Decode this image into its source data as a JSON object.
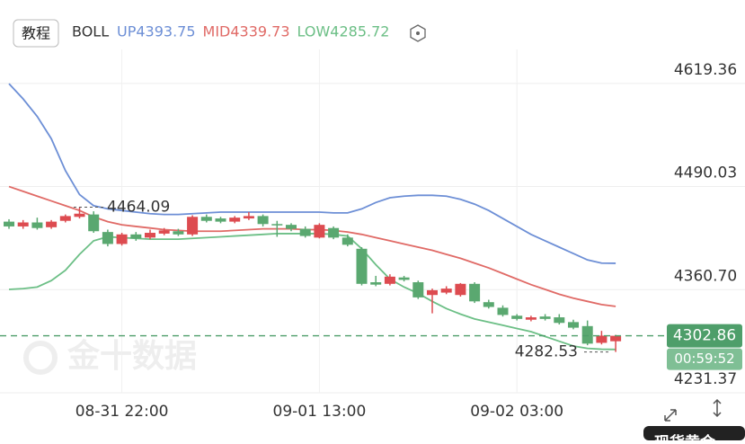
{
  "chart_data": {
    "type": "candlestick",
    "button": "教程",
    "indicator": "BOLL",
    "indicator_values": [
      {
        "text": "UP4393.75",
        "color": "#6d8fd6"
      },
      {
        "text": "MID4339.73",
        "color": "#e06a66"
      },
      {
        "text": "LOW4285.72",
        "color": "#6cbf86"
      }
    ],
    "watermark": "金十数据",
    "instrument": "现货黄金",
    "up_color": "#dd4b50",
    "down_color": "#5aa870",
    "categories": [
      null,
      null,
      null,
      null,
      null,
      null,
      null,
      null,
      "08-31 22:00",
      null,
      null,
      null,
      null,
      null,
      null,
      null,
      null,
      null,
      null,
      null,
      null,
      null,
      "09-01 13:00",
      null,
      null,
      null,
      null,
      null,
      null,
      null,
      null,
      null,
      null,
      null,
      null,
      null,
      "09-02 03:00",
      null,
      null,
      null,
      null,
      null,
      null,
      null
    ],
    "open": [
      4446,
      4440,
      4445,
      4439,
      4447,
      4452,
      4455,
      4433,
      4418,
      4430,
      4426,
      4431,
      4434,
      4430,
      4452,
      4450,
      4446,
      4450,
      4453,
      4443,
      4442,
      4437,
      4426,
      4438,
      4426,
      4412,
      4370,
      4368,
      4376,
      4370,
      4354,
      4357,
      4354,
      4368,
      4345,
      4338,
      4328,
      4323,
      4327,
      4326,
      4320,
      4315,
      4294,
      4296
    ],
    "high": [
      4449,
      4448,
      4451,
      4448,
      4455,
      4464,
      4459,
      4436,
      4432,
      4433,
      4436,
      4438,
      4437,
      4454,
      4455,
      4452,
      4453,
      4458,
      4455,
      4447,
      4444,
      4440,
      4444,
      4440,
      4430,
      4414,
      4378,
      4380,
      4378,
      4372,
      4362,
      4365,
      4369,
      4370,
      4348,
      4341,
      4330,
      4328,
      4330,
      4330,
      4323,
      4322,
      4309,
      4304
    ],
    "low": [
      4437,
      4437,
      4436,
      4437,
      4445,
      4450,
      4432,
      4415,
      4416,
      4422,
      4424,
      4429,
      4428,
      4428,
      4445,
      4444,
      4444,
      4448,
      4440,
      4427,
      4434,
      4426,
      4425,
      4424,
      4415,
      4366,
      4365,
      4366,
      4371,
      4349,
      4331,
      4355,
      4352,
      4344,
      4337,
      4327,
      4322,
      4321,
      4322,
      4317,
      4311,
      4291,
      4292,
      4282.53
    ],
    "close": [
      4440,
      4445,
      4438,
      4446,
      4453,
      4456,
      4434,
      4418,
      4430,
      4425,
      4432,
      4435,
      4430,
      4452,
      4447,
      4446,
      4451,
      4453,
      4443,
      4442,
      4437,
      4428,
      4442,
      4426,
      4417,
      4368,
      4367,
      4377,
      4373,
      4351,
      4360,
      4362,
      4368,
      4346,
      4339,
      4329,
      4324,
      4326,
      4324,
      4319,
      4313,
      4293,
      4303,
      4302.86
    ],
    "series": [
      {
        "name": "UP",
        "color": "#6d8fd6",
        "values": [
          4619,
          4600,
          4578,
          4550,
          4510,
          4480,
          4466,
          4462,
          4460,
          4458,
          4456,
          4455,
          4455,
          4456,
          4457,
          4458,
          4458,
          4458,
          4458,
          4458,
          4458,
          4458,
          4458,
          4457,
          4457,
          4462,
          4470,
          4476,
          4478,
          4479,
          4479,
          4478,
          4474,
          4468,
          4460,
          4450,
          4440,
          4430,
          4422,
          4414,
          4406,
          4398,
          4394,
          4393.75
        ]
      },
      {
        "name": "MID",
        "color": "#e06a66",
        "values": [
          4490,
          4484,
          4478,
          4472,
          4466,
          4460,
          4452,
          4446,
          4442,
          4440,
          4438,
          4436,
          4435,
          4434,
          4434,
          4434,
          4435,
          4436,
          4437,
          4437,
          4437,
          4436,
          4436,
          4435,
          4433,
          4430,
          4426,
          4422,
          4418,
          4414,
          4410,
          4405,
          4400,
          4394,
          4388,
          4381,
          4374,
          4367,
          4361,
          4355,
          4350,
          4346,
          4342,
          4339.73
        ]
      },
      {
        "name": "LOW",
        "color": "#6cbf86",
        "values": [
          4361,
          4362,
          4364,
          4372,
          4385,
          4405,
          4422,
          4427,
          4426,
          4425,
          4424,
          4424,
          4424,
          4425,
          4426,
          4427,
          4428,
          4429,
          4430,
          4431,
          4431,
          4431,
          4431,
          4430,
          4428,
          4412,
          4392,
          4374,
          4364,
          4356,
          4346,
          4337,
          4330,
          4324,
          4320,
          4316,
          4312,
          4308,
          4302,
          4296,
          4290,
          4287,
          4286,
          4285.72
        ]
      }
    ],
    "ylim": [
      4231.37,
      4662
    ],
    "yticks": [
      4231.37,
      {
        "value": 4360.7,
        "label": "4360.70"
      },
      4490.03,
      4619.36
    ],
    "grid": true,
    "last_price": 4302.86,
    "countdown": "00:59:52",
    "high_marker": 4464.09,
    "low_marker": 4282.53
  }
}
